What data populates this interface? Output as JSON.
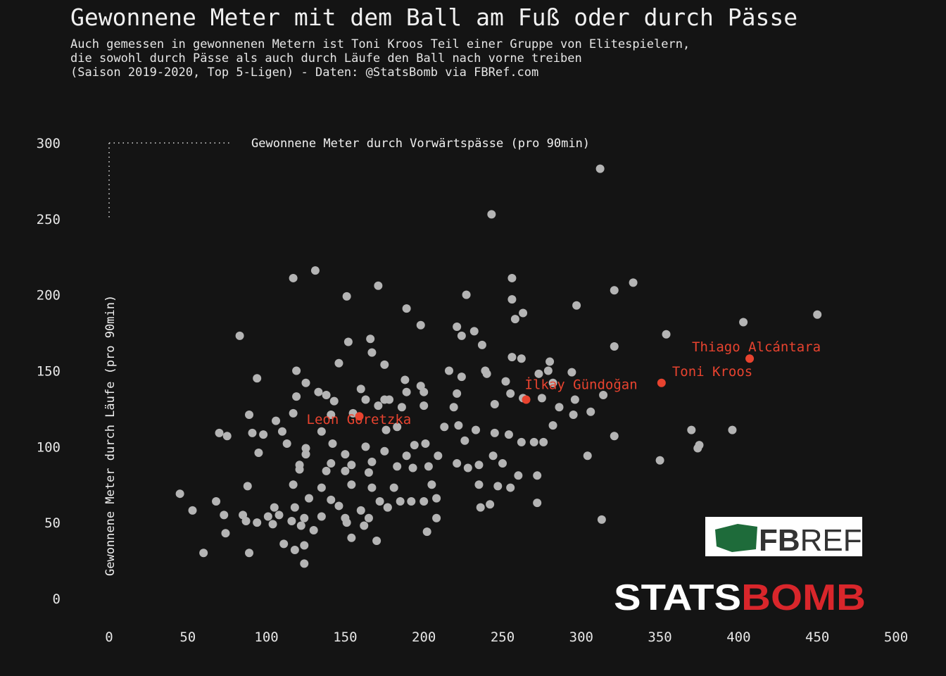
{
  "chart_data": {
    "type": "scatter",
    "title": "Gewonnene Meter mit dem Ball am Fuß oder durch Pässe",
    "subtitle": [
      "Auch gemessen in gewonnenen Metern ist Toni Kroos Teil einer Gruppe von Elitespielern,",
      "die sowohl durch Pässe als auch durch Läufe den Ball nach vorne treiben",
      "(Saison 2019-2020, Top 5-Ligen) - Daten: @StatsBomb via FBRef.com"
    ],
    "x_label": "Gewonnene Meter durch Vorwärtspässe (pro 90min)",
    "y_label": "Gewonnene Meter durch Läufe (pro 90min)",
    "xlim": [
      0,
      500
    ],
    "ylim": [
      0,
      300
    ],
    "xticks": [
      0,
      50,
      100,
      150,
      200,
      250,
      300,
      350,
      400,
      450,
      500
    ],
    "yticks": [
      0,
      50,
      100,
      150,
      200,
      250,
      300
    ],
    "series": [
      {
        "color": "#b4b4b4",
        "x": [
          312,
          243,
          131,
          117,
          171,
          256,
          333,
          321,
          227,
          151,
          256,
          297,
          189,
          263,
          450,
          403,
          198,
          221,
          258,
          83,
          232,
          224,
          354,
          166,
          152,
          237,
          321,
          167,
          256,
          262,
          280,
          146,
          175,
          119,
          216,
          239,
          279,
          294,
          273,
          240,
          94,
          125,
          188,
          198,
          224,
          252,
          282,
          160,
          133,
          200,
          189,
          221,
          255,
          314,
          275,
          263,
          296,
          119,
          138,
          143,
          175,
          178,
          163,
          245,
          306,
          286,
          295,
          200,
          219,
          171,
          186,
          89,
          117,
          141,
          155,
          106,
          222,
          282,
          176,
          183,
          213,
          233,
          70,
          75,
          91,
          98,
          110,
          370,
          396,
          135,
          245,
          254,
          321,
          375,
          374,
          95,
          113,
          125,
          142,
          163,
          194,
          201,
          226,
          262,
          270,
          276,
          304,
          350,
          125,
          150,
          175,
          189,
          209,
          244,
          250,
          121,
          141,
          154,
          167,
          183,
          203,
          221,
          235,
          121,
          138,
          150,
          165,
          193,
          228,
          272,
          45,
          68,
          53,
          73,
          88,
          117,
          135,
          154,
          167,
          181,
          205,
          235,
          255,
          247,
          127,
          141,
          172,
          200,
          208,
          192,
          260,
          272,
          242,
          236,
          105,
          118,
          146,
          160,
          177,
          185,
          85,
          101,
          108,
          124,
          135,
          150,
          87,
          94,
          116,
          151,
          165,
          177,
          208,
          313,
          74,
          104,
          122,
          130,
          162,
          111,
          124,
          118,
          60,
          89,
          124,
          154,
          170,
          202
        ],
        "y": [
          283,
          253,
          216,
          211,
          206,
          211,
          208,
          203,
          200,
          199,
          197,
          193,
          191,
          188,
          187,
          182,
          180,
          179,
          184,
          173,
          176,
          173,
          174,
          171,
          169,
          167,
          166,
          162,
          159,
          158,
          156,
          155,
          154,
          150,
          150,
          150,
          150,
          149,
          148,
          148,
          145,
          142,
          144,
          140,
          146,
          143,
          142,
          138,
          136,
          136,
          136,
          135,
          135,
          134,
          132,
          132,
          131,
          133,
          134,
          130,
          131,
          131,
          131,
          128,
          123,
          126,
          121,
          127,
          126,
          127,
          126,
          121,
          122,
          121,
          122,
          117,
          114,
          114,
          111,
          113,
          113,
          111,
          109,
          107,
          109,
          108,
          110,
          111,
          111,
          110,
          109,
          108,
          107,
          101,
          99,
          96,
          102,
          99,
          102,
          100,
          101,
          102,
          104,
          103,
          103,
          103,
          94,
          91,
          95,
          95,
          97,
          94,
          94,
          94,
          89,
          88,
          89,
          88,
          90,
          87,
          87,
          89,
          88,
          85,
          84,
          84,
          83,
          86,
          86,
          81,
          69,
          64,
          58,
          55,
          74,
          75,
          73,
          75,
          73,
          73,
          75,
          75,
          73,
          74,
          66,
          65,
          64,
          64,
          66,
          64,
          81,
          63,
          62,
          60,
          60,
          60,
          61,
          58,
          60,
          64,
          55,
          54,
          55,
          53,
          54,
          53,
          51,
          50,
          51,
          50,
          53,
          60,
          53,
          52,
          43,
          49,
          48,
          45,
          48,
          36,
          35,
          32,
          30,
          30,
          23,
          40,
          38,
          44
        ]
      },
      {
        "color": "#e8432f",
        "x": [
          407,
          351,
          265,
          159
        ],
        "y": [
          158,
          142,
          131,
          120
        ],
        "labels": [
          "Thiago Alcántara",
          "Toni Kroos",
          "İlkay Gündoğan",
          "Leon Goretzka"
        ]
      }
    ],
    "logos": {
      "fbref_1": "FB",
      "fbref_2": "REF",
      "statsbomb_1": "STATS",
      "statsbomb_2": "BOMB"
    }
  }
}
